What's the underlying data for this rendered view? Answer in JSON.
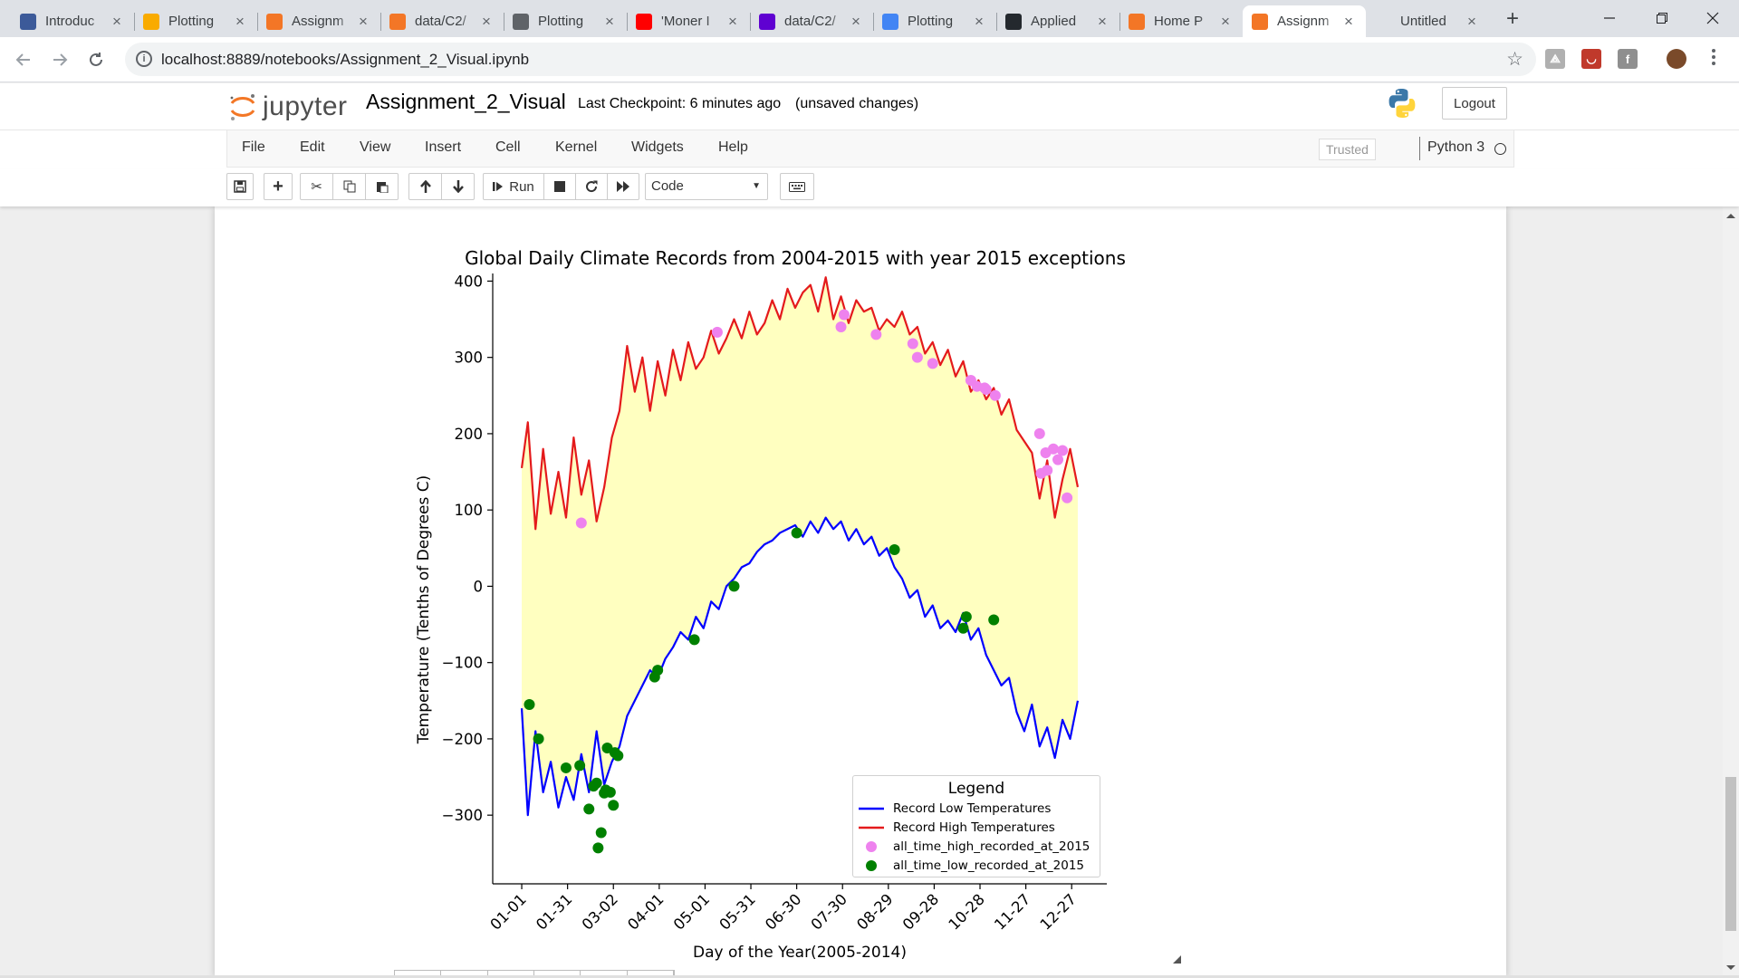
{
  "browser": {
    "tabs": [
      {
        "title": "Introduc",
        "icon": "doc-icon",
        "color": "#3c5a99"
      },
      {
        "title": "Plotting",
        "icon": "colab-icon",
        "color": "#f9ab00"
      },
      {
        "title": "Assignm",
        "icon": "jupyter-icon",
        "color": "#f37626"
      },
      {
        "title": "data/C2/",
        "icon": "jupyter-icon",
        "color": "#f37626"
      },
      {
        "title": "Plotting",
        "icon": "globe-icon",
        "color": "#5f6368"
      },
      {
        "title": "'Moner I",
        "icon": "youtube-icon",
        "color": "#ff0000"
      },
      {
        "title": "data/C2/",
        "icon": "yahoo-icon",
        "color": "#5f01d1"
      },
      {
        "title": "Plotting",
        "icon": "google-icon",
        "color": "#4285f4"
      },
      {
        "title": "Applied",
        "icon": "github-icon",
        "color": "#24292e"
      },
      {
        "title": "Home P",
        "icon": "jupyter-icon",
        "color": "#f37626"
      },
      {
        "title": "Assignm",
        "icon": "notebook-icon",
        "color": "#f37626",
        "active": true
      },
      {
        "title": "Untitled",
        "icon": "blank-icon",
        "color": "#dee1e6"
      }
    ],
    "url": "localhost:8889/notebooks/Assignment_2_Visual.ipynb"
  },
  "jupyter": {
    "logo_text": "jupyter",
    "notebook_name": "Assignment_2_Visual",
    "checkpoint": "Last Checkpoint: 6 minutes ago",
    "unsaved": "(unsaved changes)",
    "logout": "Logout",
    "menu": [
      "File",
      "Edit",
      "View",
      "Insert",
      "Cell",
      "Kernel",
      "Widgets",
      "Help"
    ],
    "trusted": "Trusted",
    "kernel": "Python 3",
    "run_label": "Run",
    "cell_type": "Code"
  },
  "chart_data": {
    "type": "line",
    "title": "Global Daily Climate Records from 2004-2015 with year 2015 exceptions",
    "xlabel": "Day of the Year(2005-2014)",
    "ylabel": "Temperature (Tenths of Degrees C)",
    "xticks": [
      "01-01",
      "01-31",
      "03-02",
      "04-01",
      "05-01",
      "05-31",
      "06-30",
      "07-30",
      "08-29",
      "09-28",
      "10-28",
      "11-27",
      "12-27"
    ],
    "xtick_days": [
      1,
      31,
      61,
      91,
      121,
      151,
      181,
      211,
      241,
      271,
      301,
      331,
      361
    ],
    "yticks": [
      -300,
      -200,
      -100,
      0,
      100,
      200,
      300,
      400
    ],
    "ylim": [
      -390,
      410
    ],
    "xlim": [
      -18,
      384
    ],
    "fill_between": {
      "color": "#ffffc0"
    },
    "legend": {
      "title": "Legend",
      "placement": "lower right",
      "entries": [
        "Record Low Temperatures",
        "Record High Temperatures",
        "all_time_high_recorded_at_2015",
        "all_time_low_recorded_at_2015"
      ]
    },
    "series": [
      {
        "name": "Record High Temperatures",
        "color": "#e41a1c",
        "x": [
          1,
          5,
          10,
          15,
          20,
          25,
          30,
          35,
          40,
          45,
          50,
          55,
          60,
          65,
          70,
          75,
          80,
          85,
          90,
          95,
          100,
          105,
          110,
          115,
          120,
          125,
          130,
          135,
          140,
          145,
          150,
          155,
          160,
          165,
          170,
          175,
          180,
          185,
          190,
          195,
          200,
          205,
          210,
          215,
          220,
          225,
          230,
          235,
          240,
          245,
          250,
          255,
          260,
          265,
          270,
          275,
          280,
          285,
          290,
          295,
          300,
          305,
          310,
          315,
          320,
          325,
          330,
          335,
          340,
          345,
          350,
          355,
          360,
          365
        ],
        "values": [
          155,
          215,
          75,
          180,
          95,
          150,
          90,
          195,
          120,
          165,
          85,
          130,
          195,
          230,
          315,
          255,
          300,
          230,
          295,
          250,
          310,
          270,
          320,
          285,
          300,
          335,
          305,
          325,
          350,
          325,
          360,
          330,
          345,
          375,
          350,
          390,
          365,
          385,
          395,
          360,
          405,
          350,
          380,
          345,
          375,
          360,
          365,
          335,
          350,
          340,
          360,
          330,
          340,
          305,
          320,
          290,
          310,
          275,
          295,
          255,
          270,
          245,
          260,
          225,
          245,
          205,
          190,
          175,
          115,
          165,
          90,
          140,
          180,
          130
        ]
      },
      {
        "name": "Record Low Temperatures",
        "color": "#0000ff",
        "x": [
          1,
          5,
          10,
          15,
          20,
          25,
          30,
          35,
          40,
          45,
          50,
          55,
          60,
          65,
          70,
          75,
          80,
          85,
          90,
          95,
          100,
          105,
          110,
          115,
          120,
          125,
          130,
          135,
          140,
          145,
          150,
          155,
          160,
          165,
          170,
          175,
          180,
          185,
          190,
          195,
          200,
          205,
          210,
          215,
          220,
          225,
          230,
          235,
          240,
          245,
          250,
          255,
          260,
          265,
          270,
          275,
          280,
          285,
          290,
          295,
          300,
          305,
          310,
          315,
          320,
          325,
          330,
          335,
          340,
          345,
          350,
          355,
          360,
          365
        ],
        "values": [
          -160,
          -300,
          -190,
          -270,
          -230,
          -290,
          -250,
          -280,
          -220,
          -270,
          -190,
          -260,
          -230,
          -210,
          -170,
          -150,
          -130,
          -110,
          -120,
          -95,
          -80,
          -60,
          -70,
          -40,
          -55,
          -20,
          -30,
          0,
          10,
          25,
          30,
          45,
          55,
          60,
          70,
          75,
          80,
          65,
          85,
          70,
          90,
          75,
          85,
          60,
          75,
          55,
          65,
          40,
          50,
          25,
          10,
          -15,
          -5,
          -40,
          -25,
          -55,
          -45,
          -60,
          -35,
          -70,
          -55,
          -90,
          -110,
          -130,
          -120,
          -165,
          -190,
          -155,
          -210,
          -185,
          -225,
          -175,
          -200,
          -150
        ]
      },
      {
        "name": "all_time_high_recorded_at_2015",
        "color": "#ee82ee",
        "x": [
          40,
          129,
          210,
          212,
          233,
          257,
          260,
          270,
          295,
          299,
          304,
          305,
          311,
          340,
          341,
          344,
          345,
          349,
          352,
          355,
          358
        ],
        "values": [
          83,
          333,
          340,
          356,
          330,
          318,
          300,
          292,
          270,
          262,
          260,
          258,
          250,
          200,
          148,
          175,
          152,
          180,
          166,
          178,
          116
        ]
      },
      {
        "name": "all_time_low_recorded_at_2015",
        "color": "#008000",
        "x": [
          6,
          12,
          30,
          39,
          45,
          48,
          50,
          51,
          53,
          55,
          56,
          57,
          59,
          61,
          62,
          64,
          88,
          90,
          114,
          140,
          181,
          245,
          290,
          292,
          310
        ],
        "values": [
          -155,
          -200,
          -238,
          -235,
          -292,
          -262,
          -258,
          -343,
          -323,
          -271,
          -267,
          -212,
          -270,
          -287,
          -218,
          -222,
          -119,
          -110,
          -70,
          0,
          70,
          48,
          -55,
          -40,
          -44
        ]
      }
    ]
  }
}
